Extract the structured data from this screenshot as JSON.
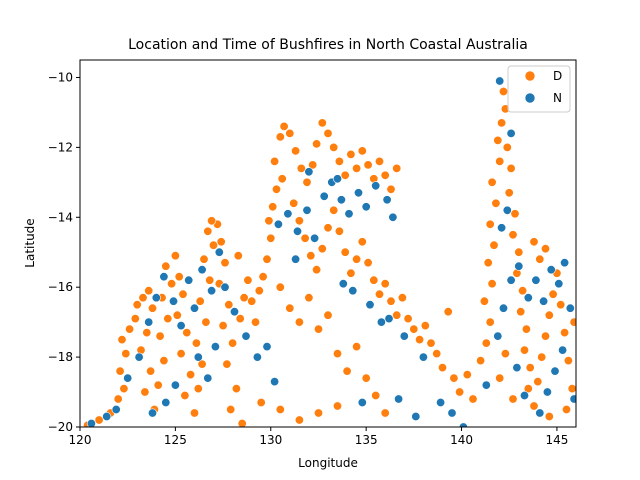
{
  "chart_data": {
    "type": "scatter",
    "title": "Location and Time of Bushfires in North Coastal Australia",
    "xlabel": "Longitude",
    "ylabel": "Latitude",
    "xlim": [
      120,
      146
    ],
    "ylim": [
      -20,
      -9.5
    ],
    "xticks": [
      120,
      125,
      130,
      135,
      140,
      145
    ],
    "yticks": [
      -20,
      -18,
      -16,
      -14,
      -12,
      -10
    ],
    "grid": false,
    "legend_position": "top-right",
    "series": [
      {
        "name": "D",
        "color": "#ff7f0e",
        "points": [
          [
            120.4,
            -19.95
          ],
          [
            121.0,
            -19.8
          ],
          [
            121.6,
            -19.6
          ],
          [
            122.0,
            -19.2
          ],
          [
            122.3,
            -18.9
          ],
          [
            122.1,
            -18.4
          ],
          [
            122.4,
            -17.9
          ],
          [
            122.2,
            -17.5
          ],
          [
            122.6,
            -17.2
          ],
          [
            122.9,
            -16.9
          ],
          [
            123.0,
            -16.5
          ],
          [
            123.3,
            -16.3
          ],
          [
            123.6,
            -16.1
          ],
          [
            123.8,
            -16.6
          ],
          [
            123.5,
            -17.3
          ],
          [
            123.2,
            -17.8
          ],
          [
            123.7,
            -18.4
          ],
          [
            123.4,
            -19.0
          ],
          [
            123.9,
            -19.5
          ],
          [
            124.1,
            -18.8
          ],
          [
            124.4,
            -18.1
          ],
          [
            124.2,
            -17.4
          ],
          [
            124.6,
            -16.9
          ],
          [
            124.3,
            -16.3
          ],
          [
            124.8,
            -15.9
          ],
          [
            124.5,
            -15.4
          ],
          [
            125.0,
            -15.1
          ],
          [
            125.2,
            -15.7
          ],
          [
            125.4,
            -16.2
          ],
          [
            125.1,
            -16.8
          ],
          [
            125.6,
            -17.3
          ],
          [
            125.3,
            -17.9
          ],
          [
            125.8,
            -18.5
          ],
          [
            125.5,
            -19.1
          ],
          [
            126.0,
            -19.6
          ],
          [
            126.2,
            -18.9
          ],
          [
            126.4,
            -18.2
          ],
          [
            126.1,
            -17.6
          ],
          [
            126.6,
            -17.0
          ],
          [
            126.3,
            -16.4
          ],
          [
            126.8,
            -15.8
          ],
          [
            126.5,
            -15.2
          ],
          [
            127.0,
            -14.8
          ],
          [
            126.7,
            -14.4
          ],
          [
            127.2,
            -14.2
          ],
          [
            127.4,
            -14.7
          ],
          [
            127.6,
            -15.3
          ],
          [
            127.3,
            -15.9
          ],
          [
            127.8,
            -16.5
          ],
          [
            127.5,
            -17.1
          ],
          [
            128.0,
            -17.6
          ],
          [
            127.7,
            -18.2
          ],
          [
            128.2,
            -18.9
          ],
          [
            127.9,
            -19.5
          ],
          [
            128.4,
            -16.9
          ],
          [
            128.6,
            -16.3
          ],
          [
            128.8,
            -15.8
          ],
          [
            129.0,
            -16.4
          ],
          [
            129.2,
            -17.0
          ],
          [
            129.4,
            -16.1
          ],
          [
            129.6,
            -15.7
          ],
          [
            129.8,
            -15.2
          ],
          [
            130.0,
            -14.6
          ],
          [
            129.9,
            -14.1
          ],
          [
            130.1,
            -13.7
          ],
          [
            130.3,
            -13.2
          ],
          [
            130.6,
            -12.9
          ],
          [
            130.2,
            -12.4
          ],
          [
            130.5,
            -11.7
          ],
          [
            130.7,
            -11.4
          ],
          [
            131.0,
            -11.6
          ],
          [
            131.3,
            -12.1
          ],
          [
            131.6,
            -12.6
          ],
          [
            131.9,
            -13.0
          ],
          [
            132.2,
            -12.5
          ],
          [
            132.4,
            -11.9
          ],
          [
            132.7,
            -11.3
          ],
          [
            133.0,
            -11.6
          ],
          [
            133.3,
            -12.0
          ],
          [
            133.6,
            -12.4
          ],
          [
            133.9,
            -12.8
          ],
          [
            134.2,
            -12.2
          ],
          [
            134.5,
            -12.6
          ],
          [
            134.8,
            -12.1
          ],
          [
            135.1,
            -12.5
          ],
          [
            135.4,
            -12.9
          ],
          [
            135.7,
            -12.4
          ],
          [
            136.0,
            -12.8
          ],
          [
            136.3,
            -13.2
          ],
          [
            136.6,
            -12.6
          ],
          [
            131.2,
            -13.6
          ],
          [
            131.5,
            -14.1
          ],
          [
            131.8,
            -14.6
          ],
          [
            132.1,
            -15.1
          ],
          [
            132.4,
            -15.5
          ],
          [
            132.7,
            -14.9
          ],
          [
            133.0,
            -14.3
          ],
          [
            133.3,
            -13.8
          ],
          [
            133.6,
            -14.4
          ],
          [
            133.9,
            -15.0
          ],
          [
            134.2,
            -15.6
          ],
          [
            134.5,
            -15.2
          ],
          [
            134.8,
            -14.7
          ],
          [
            135.1,
            -15.3
          ],
          [
            135.4,
            -15.8
          ],
          [
            135.7,
            -16.2
          ],
          [
            136.0,
            -15.9
          ],
          [
            136.3,
            -16.4
          ],
          [
            136.6,
            -16.8
          ],
          [
            136.9,
            -16.3
          ],
          [
            137.2,
            -16.9
          ],
          [
            137.5,
            -17.2
          ],
          [
            137.8,
            -17.5
          ],
          [
            138.1,
            -17.1
          ],
          [
            138.4,
            -17.6
          ],
          [
            138.7,
            -17.9
          ],
          [
            139.0,
            -18.3
          ],
          [
            139.3,
            -16.7
          ],
          [
            139.6,
            -18.6
          ],
          [
            139.9,
            -19.0
          ],
          [
            130.5,
            -16.0
          ],
          [
            131.0,
            -16.6
          ],
          [
            131.5,
            -17.0
          ],
          [
            132.0,
            -16.3
          ],
          [
            132.5,
            -17.2
          ],
          [
            133.0,
            -16.8
          ],
          [
            133.5,
            -17.9
          ],
          [
            134.0,
            -18.4
          ],
          [
            134.5,
            -17.7
          ],
          [
            135.0,
            -18.6
          ],
          [
            135.5,
            -19.1
          ],
          [
            136.0,
            -19.6
          ],
          [
            133.5,
            -19.4
          ],
          [
            132.5,
            -19.6
          ],
          [
            131.5,
            -19.8
          ],
          [
            130.5,
            -19.5
          ],
          [
            129.5,
            -19.3
          ],
          [
            128.5,
            -19.9
          ],
          [
            140.3,
            -18.5
          ],
          [
            140.6,
            -19.2
          ],
          [
            141.0,
            -18.1
          ],
          [
            141.3,
            -17.6
          ],
          [
            141.5,
            -17.0
          ],
          [
            141.2,
            -16.4
          ],
          [
            141.6,
            -15.9
          ],
          [
            141.4,
            -15.3
          ],
          [
            141.7,
            -14.8
          ],
          [
            141.5,
            -14.2
          ],
          [
            141.8,
            -13.6
          ],
          [
            141.6,
            -13.0
          ],
          [
            142.0,
            -12.4
          ],
          [
            141.9,
            -11.8
          ],
          [
            142.1,
            -11.3
          ],
          [
            142.3,
            -10.9
          ],
          [
            142.2,
            -10.4
          ],
          [
            142.4,
            -12.0
          ],
          [
            142.6,
            -12.6
          ],
          [
            142.5,
            -13.3
          ],
          [
            142.8,
            -13.9
          ],
          [
            142.7,
            -14.5
          ],
          [
            143.0,
            -15.0
          ],
          [
            142.9,
            -15.6
          ],
          [
            143.2,
            -16.1
          ],
          [
            143.1,
            -16.7
          ],
          [
            143.4,
            -17.2
          ],
          [
            143.3,
            -17.8
          ],
          [
            143.6,
            -18.3
          ],
          [
            143.5,
            -18.9
          ],
          [
            143.8,
            -19.4
          ],
          [
            144.0,
            -18.7
          ],
          [
            144.2,
            -18.0
          ],
          [
            144.4,
            -17.4
          ],
          [
            144.6,
            -16.8
          ],
          [
            144.8,
            -16.2
          ],
          [
            145.0,
            -15.6
          ],
          [
            145.2,
            -16.5
          ],
          [
            145.4,
            -17.3
          ],
          [
            145.6,
            -18.1
          ],
          [
            145.8,
            -18.9
          ],
          [
            145.5,
            -19.5
          ],
          [
            144.1,
            -15.2
          ],
          [
            143.8,
            -14.7
          ],
          [
            144.4,
            -14.9
          ],
          [
            142.3,
            -17.9
          ],
          [
            142.0,
            -18.6
          ],
          [
            142.7,
            -19.2
          ],
          [
            144.6,
            -19.7
          ],
          [
            145.9,
            -17.0
          ],
          [
            126.9,
            -14.1
          ],
          [
            128.3,
            -15.1
          ]
        ]
      },
      {
        "name": "N",
        "color": "#1f77b4",
        "points": [
          [
            120.6,
            -19.9
          ],
          [
            121.4,
            -19.7
          ],
          [
            121.9,
            -19.5
          ],
          [
            122.5,
            -18.6
          ],
          [
            123.1,
            -18.0
          ],
          [
            123.6,
            -17.0
          ],
          [
            124.0,
            -16.3
          ],
          [
            124.4,
            -15.7
          ],
          [
            124.9,
            -16.4
          ],
          [
            125.3,
            -17.1
          ],
          [
            125.7,
            -15.8
          ],
          [
            126.0,
            -16.6
          ],
          [
            126.4,
            -15.5
          ],
          [
            126.9,
            -16.1
          ],
          [
            127.3,
            -15.0
          ],
          [
            127.6,
            -16.0
          ],
          [
            128.1,
            -16.7
          ],
          [
            126.2,
            -18.0
          ],
          [
            126.7,
            -18.6
          ],
          [
            125.0,
            -18.8
          ],
          [
            124.5,
            -19.3
          ],
          [
            123.8,
            -19.6
          ],
          [
            129.3,
            -18.0
          ],
          [
            130.2,
            -18.7
          ],
          [
            130.4,
            -14.2
          ],
          [
            130.9,
            -13.9
          ],
          [
            131.4,
            -14.4
          ],
          [
            131.9,
            -13.8
          ],
          [
            132.3,
            -14.6
          ],
          [
            132.8,
            -13.4
          ],
          [
            133.2,
            -13.0
          ],
          [
            133.7,
            -13.5
          ],
          [
            134.1,
            -13.9
          ],
          [
            134.6,
            -13.3
          ],
          [
            135.0,
            -13.7
          ],
          [
            135.5,
            -13.1
          ],
          [
            136.1,
            -13.5
          ],
          [
            136.4,
            -14.0
          ],
          [
            132.0,
            -12.7
          ],
          [
            133.5,
            -12.9
          ],
          [
            134.3,
            -16.1
          ],
          [
            135.2,
            -16.5
          ],
          [
            136.2,
            -16.9
          ],
          [
            137.0,
            -17.4
          ],
          [
            138.0,
            -18.0
          ],
          [
            138.9,
            -19.3
          ],
          [
            139.5,
            -19.6
          ],
          [
            140.1,
            -20.0
          ],
          [
            137.6,
            -19.7
          ],
          [
            136.7,
            -19.2
          ],
          [
            141.3,
            -18.8
          ],
          [
            141.9,
            -17.4
          ],
          [
            142.2,
            -16.6
          ],
          [
            142.6,
            -15.8
          ],
          [
            143.0,
            -15.4
          ],
          [
            143.5,
            -16.3
          ],
          [
            143.9,
            -15.8
          ],
          [
            144.3,
            -16.4
          ],
          [
            144.7,
            -15.5
          ],
          [
            145.1,
            -15.9
          ],
          [
            145.4,
            -15.3
          ],
          [
            145.7,
            -16.6
          ],
          [
            145.3,
            -17.8
          ],
          [
            144.9,
            -18.4
          ],
          [
            144.5,
            -19.0
          ],
          [
            144.1,
            -19.6
          ],
          [
            143.3,
            -19.1
          ],
          [
            142.9,
            -18.3
          ],
          [
            145.9,
            -19.2
          ],
          [
            142.4,
            -13.8
          ],
          [
            142.1,
            -14.3
          ],
          [
            142.6,
            -11.6
          ],
          [
            142.0,
            -10.1
          ],
          [
            127.1,
            -17.7
          ],
          [
            128.7,
            -17.4
          ],
          [
            129.8,
            -17.7
          ],
          [
            131.3,
            -15.2
          ],
          [
            133.8,
            -15.9
          ],
          [
            135.8,
            -17.0
          ],
          [
            134.8,
            -19.3
          ]
        ]
      }
    ]
  }
}
